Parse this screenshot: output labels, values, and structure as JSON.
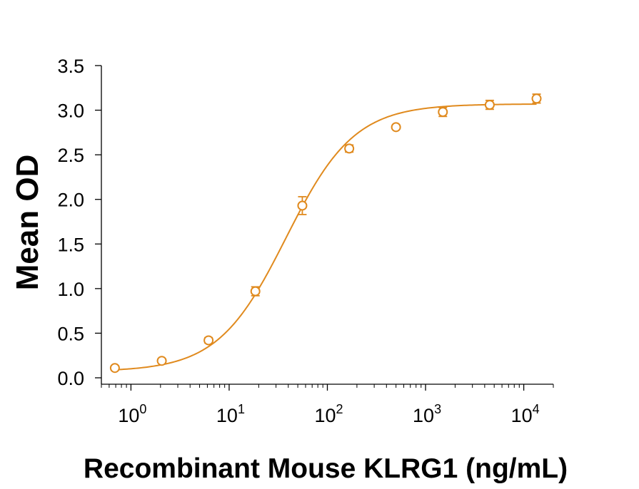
{
  "chart_data": {
    "type": "scatter",
    "title": "",
    "xlabel": "Recombinant Mouse KLRG1 (ng/mL)",
    "ylabel": "Mean OD",
    "x_scale": "log",
    "xlim": [
      0.5,
      20000
    ],
    "ylim": [
      0,
      3.5
    ],
    "x_ticks": [
      1,
      10,
      100,
      1000,
      10000
    ],
    "x_tick_labels": [
      {
        "base": "10",
        "exp": "0"
      },
      {
        "base": "10",
        "exp": "1"
      },
      {
        "base": "10",
        "exp": "2"
      },
      {
        "base": "10",
        "exp": "3"
      },
      {
        "base": "10",
        "exp": "4"
      }
    ],
    "y_ticks": [
      0,
      0.5,
      1,
      1.5,
      2,
      2.5,
      3,
      3.5
    ],
    "y_tick_labels": [
      "0.0",
      "0.5",
      "1.0",
      "1.5",
      "2.0",
      "2.5",
      "3.0",
      "3.5"
    ],
    "grid": false,
    "color": "#E08A1E",
    "series": [
      {
        "x": [
          0.686,
          2.06,
          6.17,
          18.5,
          55.6,
          167,
          500,
          1500,
          4500,
          13500
        ],
        "y": [
          0.11,
          0.19,
          0.42,
          0.97,
          1.93,
          2.57,
          2.81,
          2.98,
          3.06,
          3.13
        ],
        "error": [
          0.02,
          0.02,
          0.03,
          0.05,
          0.1,
          0.04,
          0.02,
          0.05,
          0.05,
          0.05
        ]
      }
    ],
    "fit": {
      "type": "4PL",
      "bottom": 0.07,
      "top": 3.07,
      "ec50": 38,
      "hill": 1.25
    }
  }
}
